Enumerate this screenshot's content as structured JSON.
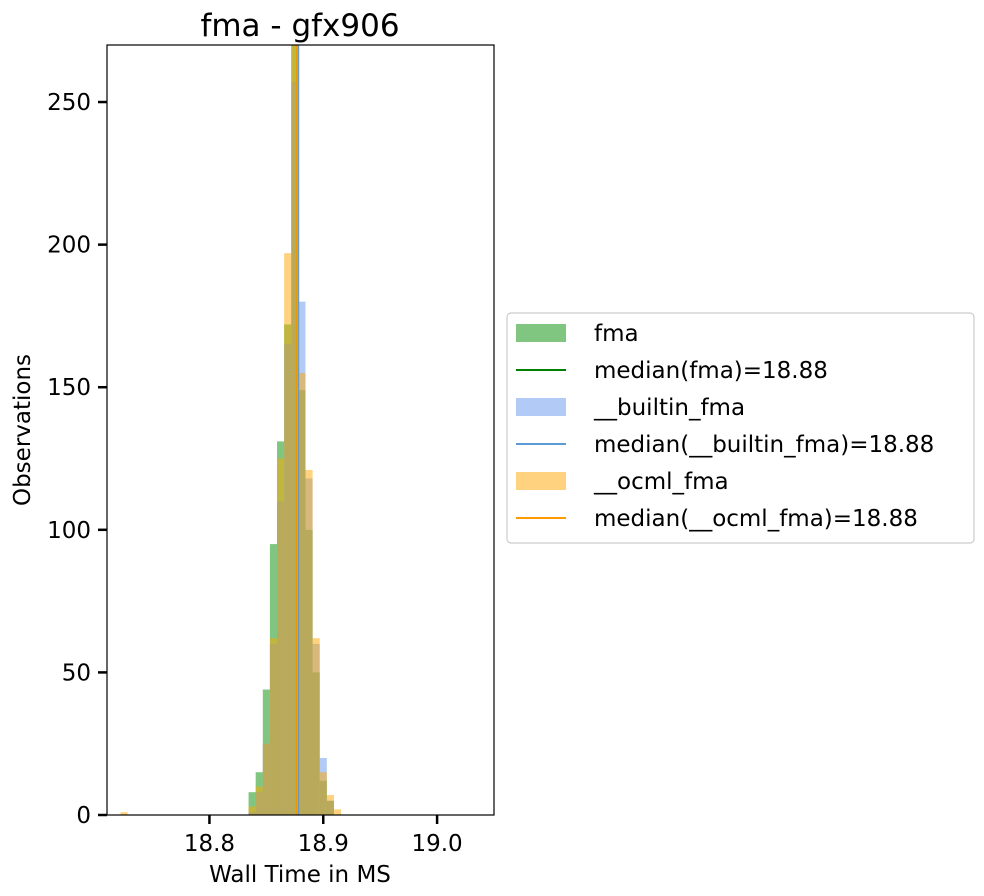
{
  "chart_data": {
    "type": "histogram",
    "title": "fma - gfx906",
    "xlabel": "Wall Time in MS",
    "ylabel": "Observations",
    "xlim": [
      18.71,
      19.05
    ],
    "ylim": [
      0,
      270
    ],
    "x_ticks": [
      18.8,
      18.9,
      19.0
    ],
    "x_tick_labels": [
      "18.8",
      "18.9",
      "19.0"
    ],
    "y_ticks": [
      0,
      50,
      100,
      150,
      200,
      250
    ],
    "y_tick_labels": [
      "0",
      "50",
      "100",
      "150",
      "200",
      "250"
    ],
    "grid": false,
    "legend_position": "right, outside",
    "bin_width": 0.00625,
    "series": [
      {
        "name": "fma",
        "color": "#2ca02c",
        "opacity": 0.6,
        "bins": [
          {
            "x": 18.8375,
            "count": 8
          },
          {
            "x": 18.84375,
            "count": 15
          },
          {
            "x": 18.85,
            "count": 44
          },
          {
            "x": 18.85625,
            "count": 95
          },
          {
            "x": 18.8625,
            "count": 131
          },
          {
            "x": 18.86875,
            "count": 172
          },
          {
            "x": 18.875,
            "count": 270
          },
          {
            "x": 18.88125,
            "count": 149
          },
          {
            "x": 18.8875,
            "count": 100
          },
          {
            "x": 18.89375,
            "count": 50
          },
          {
            "x": 18.9,
            "count": 12
          },
          {
            "x": 18.90625,
            "count": 5
          }
        ]
      },
      {
        "name": "__builtin_fma",
        "color": "#6495ed",
        "opacity": 0.5,
        "bins": [
          {
            "x": 18.8375,
            "count": 1
          },
          {
            "x": 18.84375,
            "count": 8
          },
          {
            "x": 18.85,
            "count": 25
          },
          {
            "x": 18.85625,
            "count": 60
          },
          {
            "x": 18.8625,
            "count": 110
          },
          {
            "x": 18.86875,
            "count": 165
          },
          {
            "x": 18.875,
            "count": 257
          },
          {
            "x": 18.88125,
            "count": 180
          },
          {
            "x": 18.8875,
            "count": 118
          },
          {
            "x": 18.89375,
            "count": 60
          },
          {
            "x": 18.9,
            "count": 20
          },
          {
            "x": 18.90625,
            "count": 5
          }
        ]
      },
      {
        "name": "__ocml_fma",
        "color": "#ffa500",
        "opacity": 0.5,
        "bins": [
          {
            "x": 18.725,
            "count": 1
          },
          {
            "x": 18.8375,
            "count": 3
          },
          {
            "x": 18.84375,
            "count": 10
          },
          {
            "x": 18.85,
            "count": 25
          },
          {
            "x": 18.85625,
            "count": 62
          },
          {
            "x": 18.8625,
            "count": 125
          },
          {
            "x": 18.86875,
            "count": 197
          },
          {
            "x": 18.875,
            "count": 270
          },
          {
            "x": 18.88125,
            "count": 155
          },
          {
            "x": 18.8875,
            "count": 121
          },
          {
            "x": 18.89375,
            "count": 62
          },
          {
            "x": 18.9,
            "count": 15
          },
          {
            "x": 18.90625,
            "count": 7
          },
          {
            "x": 18.9125,
            "count": 2
          }
        ]
      }
    ],
    "medians": [
      {
        "name": "median(fma)=18.88",
        "value": 18.877,
        "color": "#008000"
      },
      {
        "name": "median(__builtin_fma)=18.88",
        "value": 18.878,
        "color": "#5b9bd5"
      },
      {
        "name": "median(__ocml_fma)=18.88",
        "value": 18.877,
        "color": "#ff9900"
      }
    ],
    "legend": [
      {
        "label": "fma",
        "kind": "patch",
        "color": "#2ca02c",
        "opacity": 0.6
      },
      {
        "label": "median(fma)=18.88",
        "kind": "line",
        "color": "#008000"
      },
      {
        "label": "__builtin_fma",
        "kind": "patch",
        "color": "#6495ed",
        "opacity": 0.5
      },
      {
        "label": "median(__builtin_fma)=18.88",
        "kind": "line",
        "color": "#5b9bd5"
      },
      {
        "label": "__ocml_fma",
        "kind": "patch",
        "color": "#ffa500",
        "opacity": 0.5
      },
      {
        "label": "median(__ocml_fma)=18.88",
        "kind": "line",
        "color": "#ff9900"
      }
    ]
  }
}
